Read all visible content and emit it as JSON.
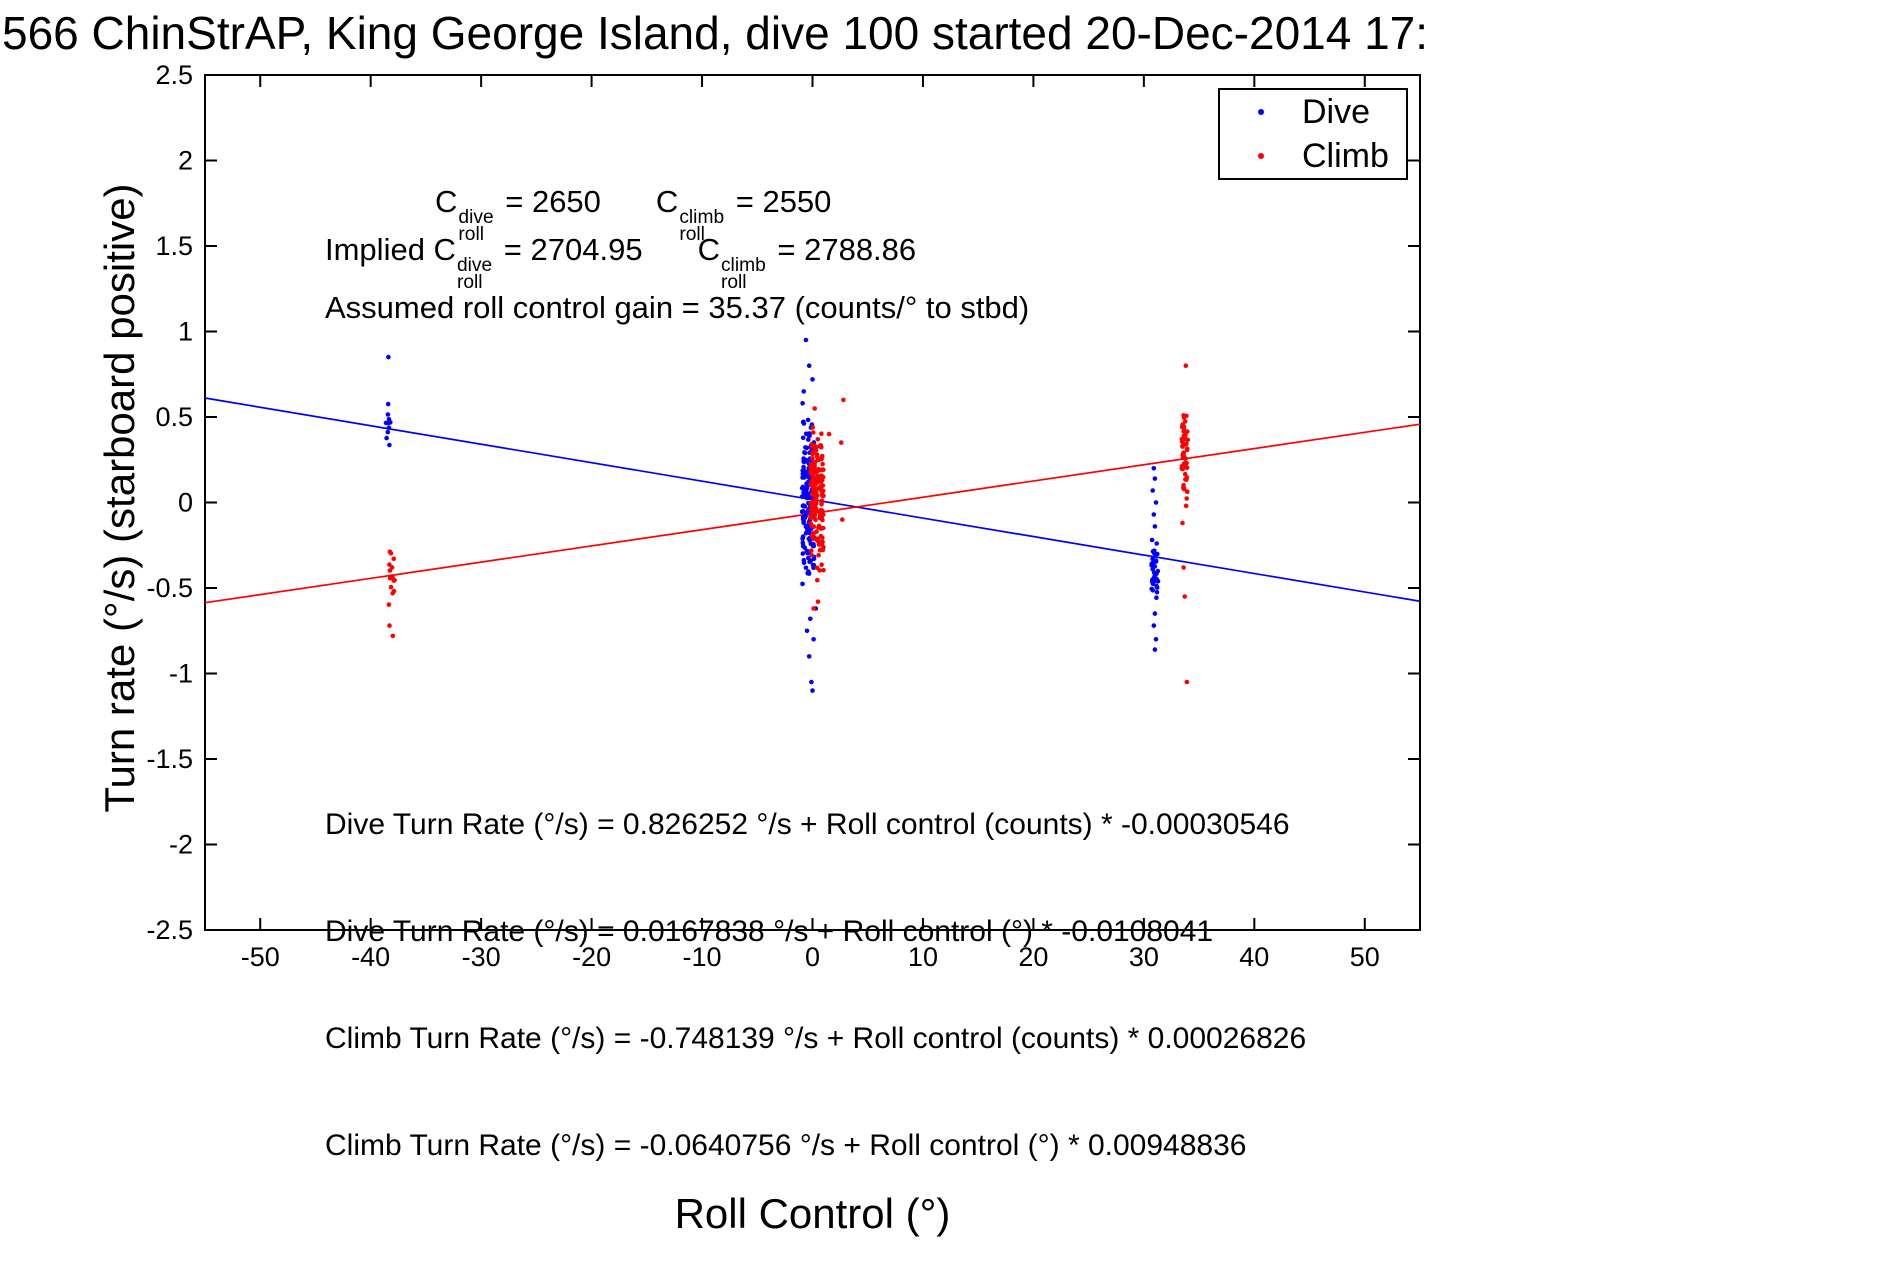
{
  "title": "566 ChinStrAP, King George Island, dive 100 started 20-Dec-2014 17:",
  "chart_data": {
    "type": "scatter",
    "title": "566 ChinStrAP, King George Island, dive 100 started 20-Dec-2014 17:",
    "xlabel": "Roll Control (°)",
    "ylabel": "Turn rate (°/s) (starboard positive)",
    "xlim": [
      -55,
      55
    ],
    "ylim": [
      -2.5,
      2.5
    ],
    "grid": false,
    "x_ticks": [
      -50,
      -40,
      -30,
      -20,
      -10,
      0,
      10,
      20,
      30,
      40,
      50
    ],
    "x_tick_labels": [
      "-50",
      "-40",
      "-30",
      "-20",
      "-10",
      "0",
      "10",
      "20",
      "30",
      "40",
      "50"
    ],
    "y_ticks": [
      -2.5,
      -2,
      -1.5,
      -1,
      -0.5,
      0,
      0.5,
      1,
      1.5,
      2,
      2.5
    ],
    "y_tick_labels": [
      "-2.5",
      "-2",
      "-1.5",
      "-1",
      "-0.5",
      "0",
      "0.5",
      "1",
      "1.5",
      "2",
      "2.5"
    ],
    "legend": {
      "position": "top-right",
      "entries": [
        {
          "label": "Dive",
          "color": "#0000ff"
        },
        {
          "label": "Climb",
          "color": "#ff0000"
        }
      ]
    },
    "series": [
      {
        "name": "Dive",
        "color": "#0000ff",
        "marker": "dot",
        "clusters": [
          {
            "x_center": -38.4,
            "x_jitter": 0.25,
            "dist": "uniform",
            "y_min": 0.28,
            "y_max": 0.63,
            "n": 10
          },
          {
            "x_center": -0.4,
            "x_jitter": 0.55,
            "dist": "normal",
            "y_mean": 0.0,
            "y_sigma": 0.25,
            "y_min": -0.6,
            "y_max": 0.5,
            "n": 165
          },
          {
            "x_center": 31.0,
            "x_jitter": 0.3,
            "dist": "normal",
            "y_mean": -0.38,
            "y_sigma": 0.09,
            "y_min": -0.58,
            "y_max": -0.2,
            "n": 36
          }
        ],
        "extra_points": [
          [
            -38.4,
            0.85
          ],
          [
            -0.6,
            0.95
          ],
          [
            -0.3,
            0.8
          ],
          [
            0,
            0.72
          ],
          [
            -0.8,
            0.65
          ],
          [
            -0.9,
            0.58
          ],
          [
            -0.2,
            -0.68
          ],
          [
            -0.5,
            -0.75
          ],
          [
            0.1,
            -0.8
          ],
          [
            -0.3,
            -0.9
          ],
          [
            -0.1,
            -1.05
          ],
          [
            0,
            -1.1
          ],
          [
            0.3,
            -0.62
          ],
          [
            30.9,
            0.2
          ],
          [
            31,
            0.14
          ],
          [
            30.8,
            0.07
          ],
          [
            31.1,
            0
          ],
          [
            30.9,
            -0.07
          ],
          [
            31,
            -0.14
          ],
          [
            31,
            -0.65
          ],
          [
            30.9,
            -0.72
          ],
          [
            31.1,
            -0.8
          ],
          [
            31,
            -0.86
          ]
        ]
      },
      {
        "name": "Climb",
        "color": "#ff0000",
        "marker": "dot",
        "clusters": [
          {
            "x_center": -38.1,
            "x_jitter": 0.3,
            "dist": "normal",
            "y_mean": -0.43,
            "y_sigma": 0.12,
            "y_min": -0.66,
            "y_max": -0.28,
            "n": 15
          },
          {
            "x_center": 0.4,
            "x_jitter": 0.6,
            "dist": "normal",
            "y_mean": 0.02,
            "y_sigma": 0.2,
            "y_min": -0.5,
            "y_max": 0.45,
            "n": 165
          },
          {
            "x_center": 33.7,
            "x_jitter": 0.28,
            "dist": "normal",
            "y_mean": 0.27,
            "y_sigma": 0.14,
            "y_min": -0.05,
            "y_max": 0.52,
            "n": 55
          }
        ],
        "extra_points": [
          [
            -38,
            -0.78
          ],
          [
            -38.3,
            -0.72
          ],
          [
            2.8,
            0.6
          ],
          [
            2.6,
            0.35
          ],
          [
            2.7,
            -0.1
          ],
          [
            0.2,
            0.55
          ],
          [
            0.5,
            -0.58
          ],
          [
            0.1,
            -0.62
          ],
          [
            1.5,
            0.4
          ],
          [
            33.8,
            0.8
          ],
          [
            33.5,
            -0.12
          ],
          [
            33.6,
            -0.38
          ],
          [
            33.7,
            -0.55
          ],
          [
            33.9,
            -1.05
          ]
        ]
      }
    ],
    "fit_lines": [
      {
        "name": "dive-fit-line",
        "color": "#0000ff",
        "intercept": 0.0167838,
        "slope": -0.0108041
      },
      {
        "name": "climb-fit-line",
        "color": "#ff0000",
        "intercept": -0.0640756,
        "slope": 0.00948836
      }
    ]
  },
  "annotations": {
    "c_line": {
      "base1": "C",
      "sup1": "dive",
      "sub1": "roll",
      "val1": " = 2650",
      "base2": "C",
      "sup2": "climb",
      "sub2": "roll",
      "val2": " = 2550"
    },
    "implied_line": {
      "prefix": "Implied ",
      "base1": "C",
      "sup1": "dive",
      "sub1": "roll",
      "val1": " = 2704.95",
      "base2": "C",
      "sup2": "climb",
      "sub2": "roll",
      "val2": " = 2788.86"
    },
    "gain_line": "Assumed roll control gain = 35.37 (counts/° to stbd)",
    "equations": [
      "Dive Turn Rate (°/s) = 0.826252 °/s + Roll control (counts) * -0.00030546",
      "Dive Turn Rate (°/s) = 0.0167838 °/s + Roll control (°) * -0.0108041",
      "Climb Turn Rate (°/s) = -0.748139 °/s + Roll control (counts) * 0.00026826",
      "Climb Turn Rate (°/s) = -0.0640756 °/s + Roll control (°) * 0.00948836"
    ]
  }
}
